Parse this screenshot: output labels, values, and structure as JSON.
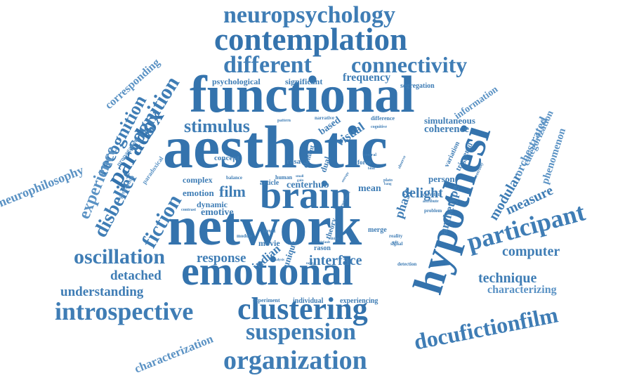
{
  "colors": {
    "primary": "#3f7db5",
    "dark": "#3473ad",
    "light": "#5a92c4"
  },
  "words": [
    "neuropsychology",
    "contemplation",
    "different",
    "connectivity",
    "functional",
    "aesthetic",
    "network",
    "emotional",
    "hypothesi",
    "brain",
    "clustering",
    "introspective",
    "suspension",
    "organization",
    "docufictionfilm",
    "participant",
    "oscillation",
    "stimulus",
    "paradox",
    "cognition",
    "recognition",
    "experience",
    "disbelief",
    "fiction",
    "film",
    "interface",
    "understanding",
    "detached",
    "response",
    "computer",
    "technique",
    "characterizing",
    "measure",
    "modular",
    "orchestrated",
    "categorization",
    "phenomenon",
    "archetype",
    "coherence",
    "simultaneous",
    "frequency",
    "information",
    "neurophilosophy",
    "characterization",
    "corresponding",
    "segregation",
    "psychological",
    "significant",
    "visual",
    "based",
    "delight",
    "phase",
    "person",
    "emotion",
    "dynamic",
    "emotive",
    "complex",
    "centerhub",
    "article",
    "mean",
    "indian",
    "unique",
    "movie",
    "theory",
    "dual",
    "element",
    "experiencing",
    "individual",
    "experiment",
    "narrative",
    "difference",
    "variation",
    "triggered",
    "correlate",
    "problem",
    "signal",
    "reality",
    "merge",
    "rason",
    "propagation",
    "generation",
    "paradoxical",
    "concept",
    "rasa",
    "balance",
    "module",
    "novel",
    "human",
    "form",
    "central",
    "plato",
    "attribute",
    "detection",
    "contrast",
    "cognitive",
    "default",
    "analysis",
    "pattern",
    "centrality",
    "observe",
    "gain",
    "bang",
    "split",
    "edition",
    "bind",
    "neural",
    "small",
    "entropy",
    "synchrony",
    "world"
  ]
}
